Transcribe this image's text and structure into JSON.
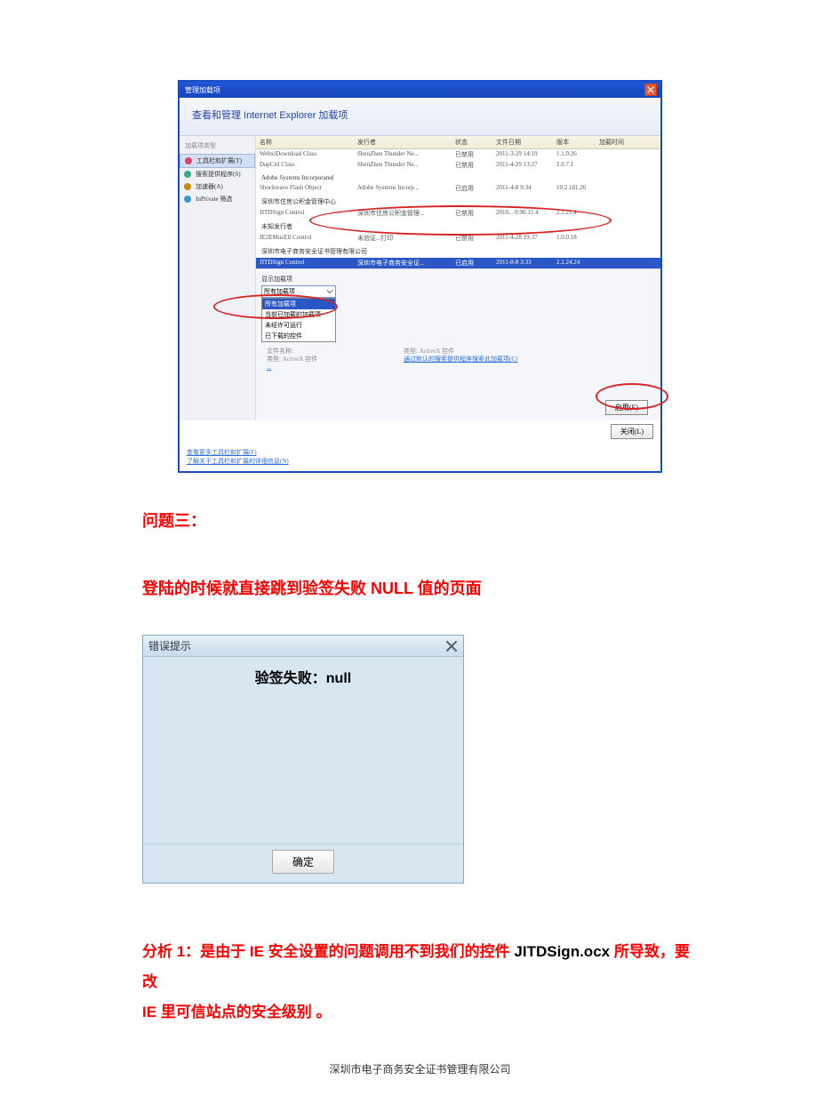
{
  "addons": {
    "titlebar": "管理加载项",
    "header": "查看和管理 Internet Explorer 加载项",
    "sidebar_head": "加载项类型",
    "sidebar": [
      {
        "label": "工具栏和扩展(T)",
        "icon": "gear",
        "active": true
      },
      {
        "label": "搜索提供程序(S)",
        "icon": "search",
        "active": false
      },
      {
        "label": "加速器(A)",
        "icon": "accel",
        "active": false
      },
      {
        "label": "InPrivate 筛选",
        "icon": "priv",
        "active": false
      }
    ],
    "columns": [
      "名称",
      "发行者",
      "状态",
      "文件日期",
      "版本",
      "加载时间"
    ],
    "groups": [
      {
        "name": "",
        "rows": [
          {
            "name": "WebxiDownload Class",
            "pub": "ShenZhen Thunder Ne...",
            "stat": "已禁用",
            "date": "2011-3-29 14:19",
            "ver": "1.1.0.26",
            "ext": ""
          },
          {
            "name": "DapCtrl Class",
            "pub": "ShenZhen Thunder Ne...",
            "stat": "已禁用",
            "date": "2011-4-29 13:27",
            "ver": "2.0.7.1",
            "ext": ""
          }
        ]
      },
      {
        "name": "Adobe Systems Incorporated",
        "rows": [
          {
            "name": "Shockwave Flash Object",
            "pub": "Adobe Systems Incorp...",
            "stat": "已启用",
            "date": "2011-4-8 9:34",
            "ver": "10.2.181.26",
            "ext": ""
          }
        ]
      },
      {
        "name": "深圳市住房公积金管理中心",
        "rows": [
          {
            "name": "JITDSign Control",
            "pub": "深圳市住房公积金管理...",
            "stat": "已禁用",
            "date": "2010... 0:90:15 4",
            "ver": "2.1.21.4",
            "ext": ""
          }
        ]
      },
      {
        "name": "未知发行者",
        "rows": [
          {
            "name": "IE2EMuzEll Control",
            "pub": "未验证...打印",
            "stat": "已禁用",
            "date": "2011-4-28 19:37",
            "ver": "1.0.0.18",
            "ext": ""
          }
        ]
      },
      {
        "name": "深圳市电子商务安全证书管理有限公司",
        "rows": [
          {
            "name": "JITDSign Control",
            "pub": "深圳市电子商务安全证...",
            "stat": "已启用",
            "date": "2011-8-8 3:33",
            "ver": "2.1.24.24",
            "ext": ""
          }
        ]
      }
    ],
    "dd_label": "显示加载项",
    "dd_selected": "所有加载项",
    "dd_options": [
      "所有加载项",
      "当前已加载的加载项",
      "未经许可运行",
      "已下载的控件"
    ],
    "meta_l1": "文件名称:",
    "meta_l2": "类型:",
    "meta_v2": "ActiveX 控件",
    "meta_r1": "类型:",
    "meta_rv1": "ActiveX 控件",
    "meta_r2": "通过默认的搜索提供程序搜索此加载项(C)",
    "btn_enable": "启用(E)",
    "btn_close": "关闭(L)",
    "foot_link1": "查看更多工具栏和扩展(F)",
    "foot_link2": "了解关于工具栏和扩展的详细信息(N)"
  },
  "section3": "问题三：",
  "section3_desc": "登陆的时候就直接跳到验签失败 NULL 值的页面",
  "dialog": {
    "title": "错误提示",
    "body": "验签失败：null",
    "ok": "确定"
  },
  "analysis": {
    "red_pre": "分析 1：是由于 IE 安全设置的问题调用不到我们的控件",
    "black1": " JITDSign.ocx ",
    "red_mid": "所导致，要改",
    "red_l2": "IE 里可信站点的安全级别 。"
  },
  "pagefoot": "深圳市电子商务安全证书管理有限公司"
}
